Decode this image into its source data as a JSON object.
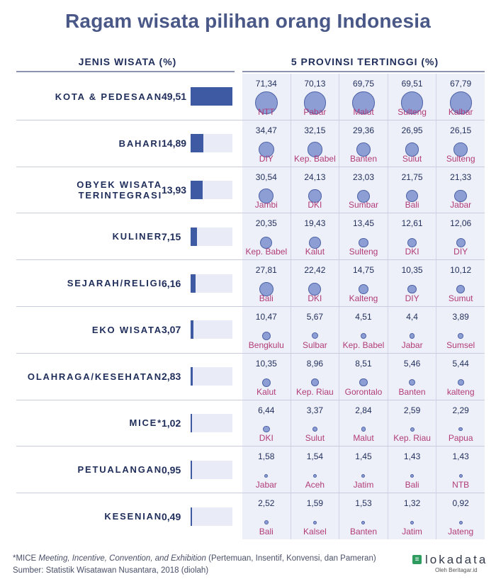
{
  "title": "Ragam wisata pilihan orang Indonesia",
  "header_left": "JENIS WISATA (%)",
  "header_right": "5 PROVINSI TERTINGGI (%)",
  "chart_data": {
    "type": "bar",
    "xlim": [
      0,
      49.51
    ],
    "categories": [
      "KOTA & PEDESAAN",
      "BAHARI",
      "OBYEK WISATA TERINTEGRASI",
      "KULINER",
      "SEJARAH/RELIGI",
      "EKO WISATA",
      "OLAHRAGA/KESEHATAN",
      "MICE*",
      "PETUALANGAN",
      "KESENIAN"
    ],
    "values": [
      49.51,
      14.89,
      13.93,
      7.15,
      6.16,
      3.07,
      2.83,
      1.02,
      0.95,
      0.49
    ],
    "value_labels": [
      "49,51",
      "14,89",
      "13,93",
      "7,15",
      "6,16",
      "3,07",
      "2,83",
      "1,02",
      "0,95",
      "0,49"
    ],
    "provinces": [
      [
        {
          "name": "NTT",
          "label": "71,34",
          "value": 71.34
        },
        {
          "name": "Pabar",
          "label": "70,13",
          "value": 70.13
        },
        {
          "name": "Malut",
          "label": "69,75",
          "value": 69.75
        },
        {
          "name": "Sulteng",
          "label": "69,51",
          "value": 69.51
        },
        {
          "name": "Kalbar",
          "label": "67,79",
          "value": 67.79
        }
      ],
      [
        {
          "name": "DIY",
          "label": "34,47",
          "value": 34.47
        },
        {
          "name": "Kep. Babel",
          "label": "32,15",
          "value": 32.15
        },
        {
          "name": "Banten",
          "label": "29,36",
          "value": 29.36
        },
        {
          "name": "Sulut",
          "label": "26,95",
          "value": 26.95
        },
        {
          "name": "Sulteng",
          "label": "26,15",
          "value": 26.15
        }
      ],
      [
        {
          "name": "Jambi",
          "label": "30,54",
          "value": 30.54
        },
        {
          "name": "DKI",
          "label": "24,13",
          "value": 24.13
        },
        {
          "name": "Sumbar",
          "label": "23,03",
          "value": 23.03
        },
        {
          "name": "Bali",
          "label": "21,75",
          "value": 21.75
        },
        {
          "name": "Jabar",
          "label": "21,33",
          "value": 21.33
        }
      ],
      [
        {
          "name": "Kep. Babel",
          "label": "20,35",
          "value": 20.35
        },
        {
          "name": "Kalut",
          "label": "19,43",
          "value": 19.43
        },
        {
          "name": "Sulteng",
          "label": "13,45",
          "value": 13.45
        },
        {
          "name": "DKI",
          "label": "12,61",
          "value": 12.61
        },
        {
          "name": "DIY",
          "label": "12,06",
          "value": 12.06
        }
      ],
      [
        {
          "name": "Bali",
          "label": "27,81",
          "value": 27.81
        },
        {
          "name": "DKI",
          "label": "22,42",
          "value": 22.42
        },
        {
          "name": "Kalteng",
          "label": "14,75",
          "value": 14.75
        },
        {
          "name": "DIY",
          "label": "10,35",
          "value": 10.35
        },
        {
          "name": "Sumut",
          "label": "10,12",
          "value": 10.12
        }
      ],
      [
        {
          "name": "Bengkulu",
          "label": "10,47",
          "value": 10.47
        },
        {
          "name": "Sulbar",
          "label": "5,67",
          "value": 5.67
        },
        {
          "name": "Kep. Babel",
          "label": "4,51",
          "value": 4.51
        },
        {
          "name": "Jabar",
          "label": "4,4",
          "value": 4.4
        },
        {
          "name": "Sumsel",
          "label": "3,89",
          "value": 3.89
        }
      ],
      [
        {
          "name": "Kalut",
          "label": "10,35",
          "value": 10.35
        },
        {
          "name": "Kep. Riau",
          "label": "8,96",
          "value": 8.96
        },
        {
          "name": "Gorontalo",
          "label": "8,51",
          "value": 8.51
        },
        {
          "name": "Banten",
          "label": "5,46",
          "value": 5.46
        },
        {
          "name": "kalteng",
          "label": "5,44",
          "value": 5.44
        }
      ],
      [
        {
          "name": "DKI",
          "label": "6,44",
          "value": 6.44
        },
        {
          "name": "Sulut",
          "label": "3,37",
          "value": 3.37
        },
        {
          "name": "Malut",
          "label": "2,84",
          "value": 2.84
        },
        {
          "name": "Kep. Riau",
          "label": "2,59",
          "value": 2.59
        },
        {
          "name": "Papua",
          "label": "2,29",
          "value": 2.29
        }
      ],
      [
        {
          "name": "Jabar",
          "label": "1,58",
          "value": 1.58
        },
        {
          "name": "Aceh",
          "label": "1,54",
          "value": 1.54
        },
        {
          "name": "Jatim",
          "label": "1,45",
          "value": 1.45
        },
        {
          "name": "Bali",
          "label": "1,43",
          "value": 1.43
        },
        {
          "name": "NTB",
          "label": "1,43",
          "value": 1.43
        }
      ],
      [
        {
          "name": "Bali",
          "label": "2,52",
          "value": 2.52
        },
        {
          "name": "Kalsel",
          "label": "1,59",
          "value": 1.59
        },
        {
          "name": "Banten",
          "label": "1,53",
          "value": 1.53
        },
        {
          "name": "Jatim",
          "label": "1,32",
          "value": 1.32
        },
        {
          "name": "Jateng",
          "label": "0,92",
          "value": 0.92
        }
      ]
    ]
  },
  "footnote": {
    "mice_prefix": "*MICE ",
    "mice_italic": "Meeting, Incentive, Convention, and Exhibition",
    "mice_suffix": " (Pertemuan, Insentif, Konvensi, dan Pameran)",
    "source": "Sumber: Statistik Wisatawan Nusantara, 2018 (diolah)"
  },
  "logo": {
    "mark": "≡",
    "word": "lokadata",
    "sub": "Oleh Beritagar.id"
  }
}
